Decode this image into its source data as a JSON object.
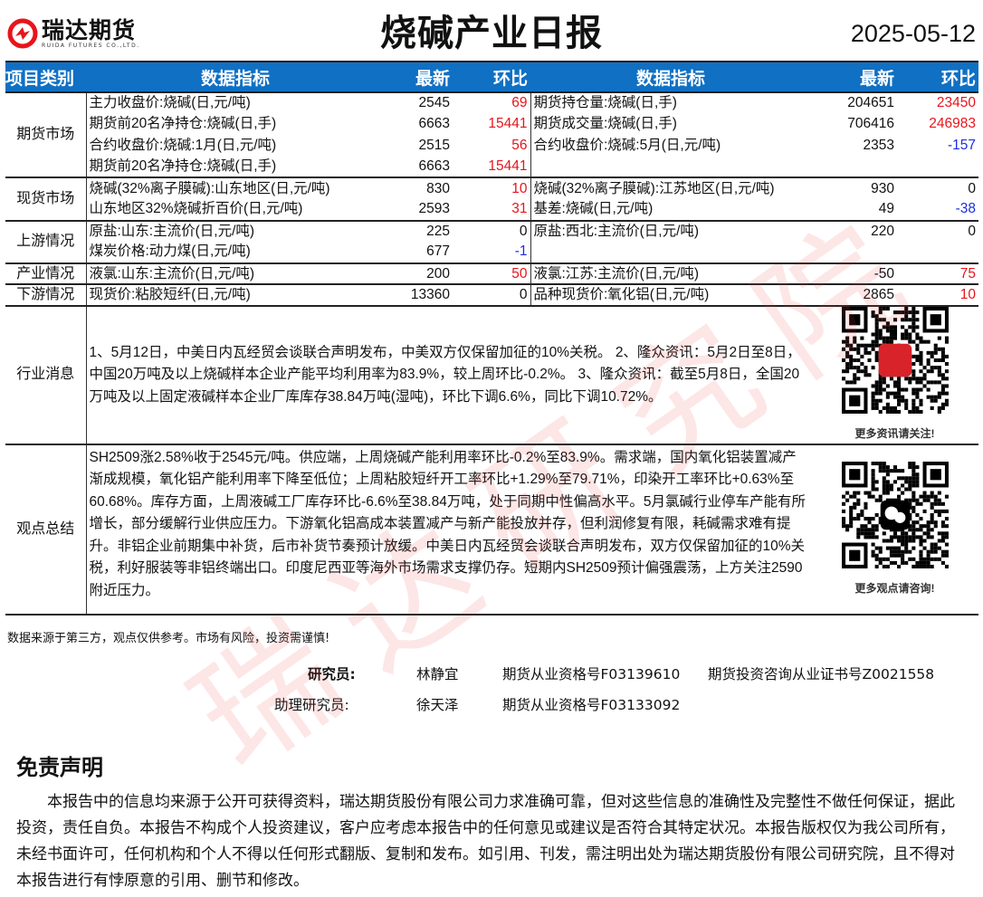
{
  "header": {
    "company_cn": "瑞达期货",
    "company_en": "RUIDA FUTURES CO.,LTD.",
    "title": "烧碱产业日报",
    "date": "2025-05-12",
    "brand_color": "#e8141b"
  },
  "table": {
    "headers": [
      "项目类别",
      "数据指标",
      "最新",
      "环比",
      "数据指标",
      "最新",
      "环比"
    ],
    "header_color": "#1070c4",
    "groups": [
      {
        "category": "期货市场",
        "rows": [
          {
            "l": "主力收盘价:烧碱(日,元/吨)",
            "lv": "2545",
            "lc": "69",
            "lcc": "red",
            "r": "期货持仓量:烧碱(日,手)",
            "rv": "204651",
            "rc": "23450",
            "rcc": "red"
          },
          {
            "l": "期货前20名净持仓:烧碱(日,手)",
            "lv": "6663",
            "lc": "15441",
            "lcc": "red",
            "r": "期货成交量:烧碱(日,手)",
            "rv": "706416",
            "rc": "246983",
            "rcc": "red"
          },
          {
            "l": "合约收盘价:烧碱:1月(日,元/吨)",
            "lv": "2515",
            "lc": "56",
            "lcc": "red",
            "r": "合约收盘价:烧碱:5月(日,元/吨)",
            "rv": "2353",
            "rc": "-157",
            "rcc": "blue"
          },
          {
            "l": "期货前20名净持仓:烧碱(日,手)",
            "lv": "6663",
            "lc": "15441",
            "lcc": "red",
            "r": "",
            "rv": "",
            "rc": "",
            "rcc": "blk"
          }
        ]
      },
      {
        "category": "现货市场",
        "rows": [
          {
            "l": "烧碱(32%离子膜碱):山东地区(日,元/吨)",
            "lv": "830",
            "lc": "10",
            "lcc": "red",
            "r": "烧碱(32%离子膜碱):江苏地区(日,元/吨)",
            "rv": "930",
            "rc": "0",
            "rcc": "blk"
          },
          {
            "l": "山东地区32%烧碱折百价(日,元/吨)",
            "lv": "2593",
            "lc": "31",
            "lcc": "red",
            "r": "基差:烧碱(日,元/吨)",
            "rv": "49",
            "rc": "-38",
            "rcc": "blue"
          }
        ]
      },
      {
        "category": "上游情况",
        "rows": [
          {
            "l": "原盐:山东:主流价(日,元/吨)",
            "lv": "225",
            "lc": "0",
            "lcc": "blk",
            "r": "原盐:西北:主流价(日,元/吨)",
            "rv": "220",
            "rc": "0",
            "rcc": "blk"
          },
          {
            "l": "煤炭价格:动力煤(日,元/吨)",
            "lv": "677",
            "lc": "-1",
            "lcc": "blue",
            "r": "",
            "rv": "",
            "rc": "",
            "rcc": "blk"
          }
        ]
      },
      {
        "category": "产业情况",
        "rows": [
          {
            "l": "液氯:山东:主流价(日,元/吨)",
            "lv": "200",
            "lc": "50",
            "lcc": "red",
            "r": "液氯:江苏:主流价(日,元/吨)",
            "rv": "-50",
            "rc": "75",
            "rcc": "red"
          }
        ]
      },
      {
        "category": "下游情况",
        "rows": [
          {
            "l": "现货价:粘胶短纤(日,元/吨)",
            "lv": "13360",
            "lc": "0",
            "lcc": "blk",
            "r": "品种现货价:氧化铝(日,元/吨)",
            "rv": "2865",
            "rc": "10",
            "rcc": "red"
          }
        ]
      }
    ]
  },
  "news": {
    "category": "行业消息",
    "text": "1、5月12日，中美日内瓦经贸会谈联合声明发布，中美双方仅保留加征的10%关税。 2、隆众资讯：5月2日至8日，中国20万吨及以上烧碱样本企业产能平均利用率为83.9%，较上周环比-0.2%。 3、隆众资讯：截至5月8日，全国20万吨及以上固定液碱样本企业厂库库存38.84万吨(湿吨)，环比下调6.6%，同比下调10.72%。",
    "qr_caption": "更多资讯请关注!"
  },
  "opinion": {
    "category": "观点总结",
    "text": "SH2509涨2.58%收于2545元/吨。供应端，上周烧碱产能利用率环比-0.2%至83.9%。需求端，国内氧化铝装置减产渐成规模，氧化铝产能利用率下降至低位；上周粘胶短纤开工率环比+1.29%至79.71%，印染开工率环比+0.63%至60.68%。库存方面，上周液碱工厂库存环比-6.6%至38.84万吨，处于同期中性偏高水平。5月氯碱行业停车产能有所增长，部分缓解行业供应压力。下游氧化铝高成本装置减产与新产能投放并存，但利润修复有限，耗碱需求难有提升。非铝企业前期集中补货，后市补货节奏预计放缓。中美日内瓦经贸会谈联合声明发布，双方仅保留加征的10%关税，利好服装等非铝终端出口。印度尼西亚等海外市场需求支撑仍存。短期内SH2509预计偏强震荡，上方关注2590附近压力。",
    "qr_caption": "更多观点请咨询!"
  },
  "source_note": "数据来源于第三方，观点仅供参考。市场有风险，投资需谨慎!",
  "researchers": {
    "label1": "研究员:",
    "name1": "林静宜",
    "cert1a": "期货从业资格号F03139610",
    "cert1b": "期货投资咨询从业证书号Z0021558",
    "label2": "助理研究员:",
    "name2": "徐天泽",
    "cert2": "期货从业资格号F03133092"
  },
  "disclaimer": {
    "title": "免责声明",
    "text": "本报告中的信息均来源于公开可获得资料，瑞达期货股份有限公司力求准确可靠，但对这些信息的准确性及完整性不做任何保证，据此投资，责任自负。本报告不构成个人投资建议，客户应考虑本报告中的任何意见或建议是否符合其特定状况。本报告版权仅为我公司所有，未经书面许可，任何机构和个人不得以任何形式翻版、复制和发布。如引用、刊发，需注明出处为瑞达期货股份有限公司研究院，且不得对本报告进行有悖原意的引用、删节和修改。"
  },
  "watermark": "瑞达研究院"
}
